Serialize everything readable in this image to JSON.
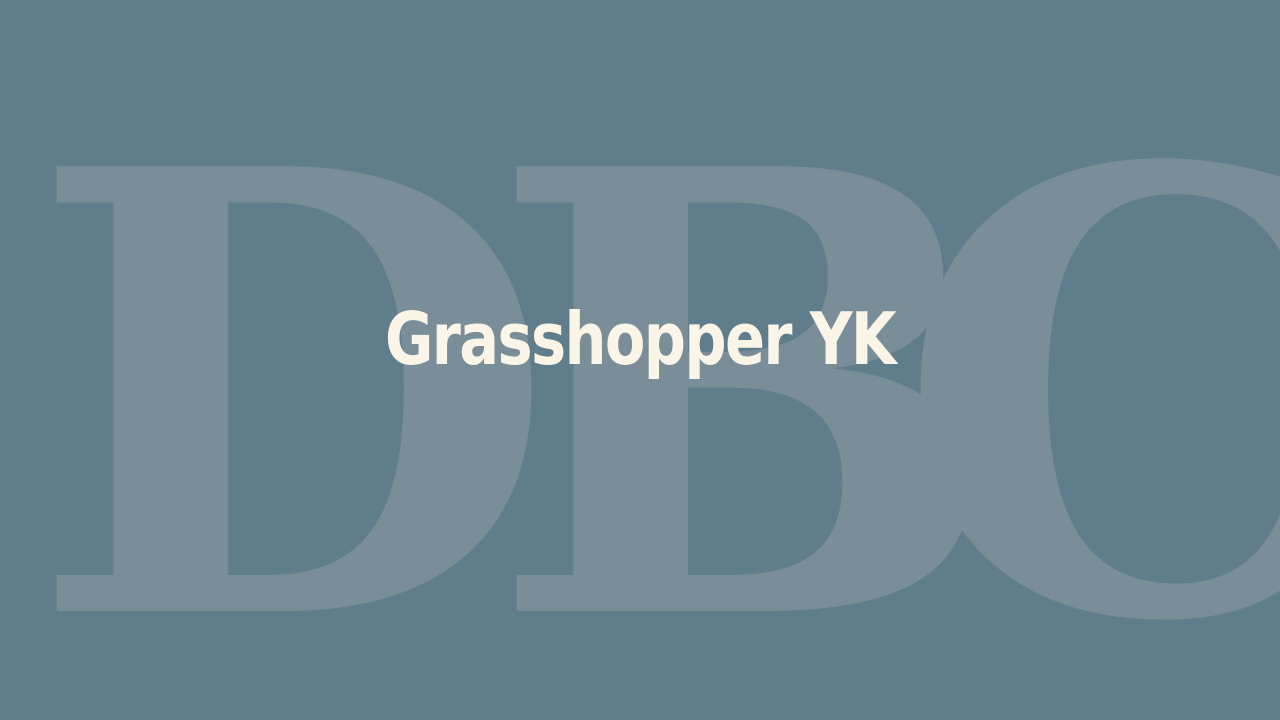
{
  "background": {
    "letters": [
      "D",
      "B",
      "C"
    ],
    "color": "#607d8c",
    "letter_color": "#7a8e9a"
  },
  "title": {
    "text": "Grasshopper YK",
    "color": "#fbf5e8"
  }
}
